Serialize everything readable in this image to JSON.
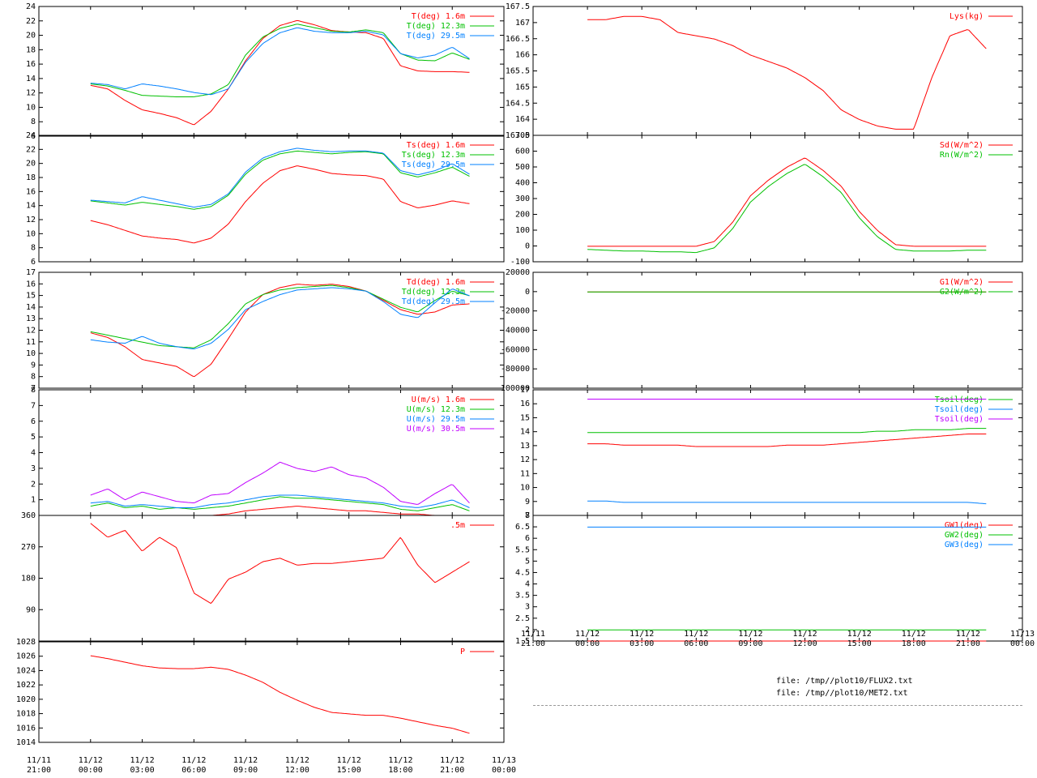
{
  "colors": {
    "red": "#ff0000",
    "green": "#00c000",
    "blue": "#0080ff",
    "purple": "#c000ff"
  },
  "x_time_ticks": [
    "11/11\n21:00",
    "11/12\n00:00",
    "11/12\n03:00",
    "11/12\n06:00",
    "11/12\n09:00",
    "11/12\n12:00",
    "11/12\n15:00",
    "11/12\n18:00",
    "11/12\n21:00",
    "11/13\n00:00"
  ],
  "files": [
    "file: /tmp//plot10/FLUX2.txt",
    "file: /tmp//plot10/MET2.txt"
  ],
  "chart_data": [
    {
      "id": "air-temperature",
      "type": "line",
      "ylim": [
        6,
        24
      ],
      "yticks": [
        "24",
        "22",
        "20",
        "18",
        "16",
        "14",
        "12",
        "10",
        "8",
        "6"
      ],
      "legend_placement": "top-right",
      "series": [
        {
          "name": "T(deg)  1.6m",
          "color": "red",
          "values": [
            13.1,
            12.6,
            11.0,
            9.7,
            9.2,
            8.6,
            7.6,
            9.5,
            12.6,
            16.5,
            19.6,
            21.4,
            22.1,
            21.5,
            20.7,
            20.5,
            20.4,
            19.6,
            15.8,
            15.1,
            15.0,
            15.0,
            14.9
          ]
        },
        {
          "name": "T(deg) 12.3m",
          "color": "green",
          "values": [
            13.3,
            13.0,
            12.4,
            11.7,
            11.6,
            11.5,
            11.5,
            11.9,
            13.2,
            17.3,
            19.8,
            21.0,
            21.6,
            21.1,
            20.6,
            20.5,
            20.8,
            20.4,
            17.5,
            16.6,
            16.5,
            17.6,
            16.7
          ]
        },
        {
          "name": "T(deg) 29.5m",
          "color": "blue",
          "values": [
            13.4,
            13.2,
            12.6,
            13.3,
            13.0,
            12.6,
            12.1,
            11.8,
            12.6,
            16.3,
            18.9,
            20.4,
            21.1,
            20.6,
            20.4,
            20.4,
            20.6,
            20.1,
            17.5,
            16.9,
            17.3,
            18.4,
            16.8
          ]
        }
      ]
    },
    {
      "id": "surface-temperature",
      "type": "line",
      "ylim": [
        6,
        24
      ],
      "yticks": [
        "24",
        "22",
        "20",
        "18",
        "16",
        "14",
        "12",
        "10",
        "8",
        "6"
      ],
      "legend_placement": "top-right",
      "series": [
        {
          "name": "Ts(deg)  1.6m",
          "color": "red",
          "values": [
            12.0,
            11.4,
            10.6,
            9.8,
            9.5,
            9.3,
            8.8,
            9.5,
            11.5,
            14.7,
            17.3,
            19.1,
            19.8,
            19.3,
            18.7,
            18.5,
            18.4,
            17.9,
            14.7,
            13.8,
            14.2,
            14.8,
            14.4
          ]
        },
        {
          "name": "Ts(deg) 12.3m",
          "color": "green",
          "values": [
            14.8,
            14.5,
            14.2,
            14.6,
            14.3,
            14.0,
            13.6,
            14.0,
            15.6,
            18.6,
            20.6,
            21.5,
            21.9,
            21.7,
            21.5,
            21.7,
            21.8,
            21.5,
            18.8,
            18.2,
            18.8,
            19.6,
            18.3
          ]
        },
        {
          "name": "Ts(deg) 29.5m",
          "color": "blue",
          "values": [
            14.9,
            14.7,
            14.5,
            15.4,
            14.9,
            14.4,
            13.9,
            14.3,
            15.8,
            18.9,
            20.9,
            21.8,
            22.3,
            22.0,
            21.8,
            21.9,
            21.9,
            21.6,
            19.1,
            18.5,
            19.1,
            20.1,
            18.6
          ]
        }
      ]
    },
    {
      "id": "dew-point",
      "type": "line",
      "ylim": [
        7,
        17
      ],
      "yticks": [
        "17",
        "16",
        "15",
        "14",
        "13",
        "12",
        "11",
        "10",
        "9",
        "8",
        "7"
      ],
      "legend_placement": "top-right",
      "series": [
        {
          "name": "Td(deg)  1.6m",
          "color": "red",
          "values": [
            11.8,
            11.4,
            10.6,
            9.5,
            9.2,
            8.9,
            8.0,
            9.1,
            11.3,
            13.6,
            15.1,
            15.7,
            16.0,
            15.9,
            16.0,
            15.8,
            15.4,
            14.6,
            13.8,
            13.4,
            13.6,
            14.2,
            14.3
          ]
        },
        {
          "name": "Td(deg) 12.3m",
          "color": "green",
          "values": [
            11.9,
            11.6,
            11.3,
            11.0,
            10.7,
            10.6,
            10.5,
            11.2,
            12.6,
            14.3,
            15.1,
            15.5,
            15.7,
            15.8,
            15.9,
            15.7,
            15.4,
            14.7,
            14.0,
            13.6,
            14.6,
            15.4,
            15.0
          ]
        },
        {
          "name": "Td(deg) 29.5m",
          "color": "blue",
          "values": [
            11.2,
            11.0,
            10.9,
            11.5,
            10.9,
            10.6,
            10.4,
            10.9,
            12.1,
            13.8,
            14.5,
            15.1,
            15.5,
            15.6,
            15.7,
            15.6,
            15.4,
            14.5,
            13.4,
            13.1,
            14.4,
            15.6,
            15.0
          ]
        }
      ]
    },
    {
      "id": "wind-speed",
      "type": "line",
      "ylim": [
        0,
        8
      ],
      "yticks": [
        "8",
        "7",
        "6",
        "5",
        "4",
        "3",
        "2",
        "1"
      ],
      "legend_placement": "top-right",
      "series": [
        {
          "name": "U(m/s)  1.6m",
          "color": "red",
          "values": [
            0.2,
            0.2,
            0.2,
            0.2,
            0.2,
            0.2,
            0.2,
            0.2,
            0.3,
            0.5,
            0.6,
            0.7,
            0.8,
            0.7,
            0.6,
            0.5,
            0.5,
            0.4,
            0.3,
            0.3,
            0.2,
            0.2,
            0.2
          ]
        },
        {
          "name": "U(m/s) 12.3m",
          "color": "green",
          "values": [
            0.8,
            1.0,
            0.7,
            0.8,
            0.6,
            0.7,
            0.6,
            0.7,
            0.8,
            1.0,
            1.2,
            1.4,
            1.3,
            1.3,
            1.2,
            1.1,
            1.0,
            0.9,
            0.6,
            0.5,
            0.7,
            0.9,
            0.5
          ]
        },
        {
          "name": "U(m/s) 29.5m",
          "color": "blue",
          "values": [
            1.0,
            1.1,
            0.8,
            0.9,
            0.8,
            0.7,
            0.7,
            0.9,
            1.0,
            1.2,
            1.4,
            1.5,
            1.5,
            1.4,
            1.3,
            1.2,
            1.1,
            1.0,
            0.8,
            0.7,
            0.9,
            1.2,
            0.7
          ]
        },
        {
          "name": "U(m/s) 30.5m",
          "color": "purple",
          "values": [
            1.5,
            1.9,
            1.2,
            1.7,
            1.4,
            1.1,
            1.0,
            1.5,
            1.6,
            2.3,
            2.9,
            3.6,
            3.2,
            3.0,
            3.3,
            2.8,
            2.6,
            2.0,
            1.1,
            0.9,
            1.6,
            2.2,
            1.0
          ]
        }
      ]
    },
    {
      "id": "wind-direction",
      "type": "line",
      "ylim": [
        0,
        360
      ],
      "yticks": [
        "360",
        "270",
        "180",
        "90"
      ],
      "legend_placement": "top-right",
      "series": [
        {
          "name": ".5m",
          "color": "red",
          "values": [
            340,
            300,
            320,
            260,
            300,
            270,
            140,
            110,
            180,
            200,
            230,
            240,
            220,
            225,
            225,
            230,
            235,
            240,
            300,
            220,
            170,
            200,
            230
          ]
        }
      ]
    },
    {
      "id": "pressure",
      "type": "line",
      "ylim": [
        1014,
        1028
      ],
      "yticks": [
        "1028",
        "1026",
        "1024",
        "1022",
        "1020",
        "1018",
        "1016",
        "1014"
      ],
      "legend_placement": "top-right",
      "series": [
        {
          "name": "P",
          "color": "red",
          "values": [
            1026.1,
            1025.7,
            1025.2,
            1024.7,
            1024.4,
            1024.3,
            1024.3,
            1024.5,
            1024.2,
            1023.4,
            1022.4,
            1021.0,
            1019.9,
            1018.9,
            1018.2,
            1018.0,
            1017.8,
            1017.8,
            1017.4,
            1016.9,
            1016.4,
            1016.0,
            1015.3
          ]
        }
      ]
    },
    {
      "id": "lysimeter",
      "type": "line",
      "ylim": [
        163.5,
        167.5
      ],
      "yticks": [
        "167.5",
        "167",
        "166.5",
        "166",
        "165.5",
        "165",
        "164.5",
        "164",
        "163.5"
      ],
      "legend_placement": "top-right",
      "series": [
        {
          "name": "Lys(kg)",
          "color": "red",
          "values": [
            167.1,
            167.1,
            167.2,
            167.2,
            167.1,
            166.7,
            166.6,
            166.5,
            166.3,
            166.0,
            165.8,
            165.6,
            165.3,
            164.9,
            164.3,
            164.0,
            163.8,
            163.7,
            163.7,
            165.3,
            166.6,
            166.8,
            166.2
          ]
        }
      ]
    },
    {
      "id": "radiation",
      "type": "line",
      "ylim": [
        -100,
        700
      ],
      "yticks": [
        "700",
        "600",
        "500",
        "400",
        "300",
        "200",
        "100",
        "0",
        "-100"
      ],
      "legend_placement": "top-right",
      "series": [
        {
          "name": "Sd(W/m^2)",
          "color": "red",
          "values": [
            0,
            0,
            0,
            0,
            0,
            0,
            0,
            30,
            150,
            320,
            420,
            500,
            560,
            480,
            380,
            220,
            100,
            10,
            0,
            0,
            0,
            0,
            0
          ]
        },
        {
          "name": "Rn(W/m^2)",
          "color": "green",
          "values": [
            -20,
            -25,
            -30,
            -30,
            -35,
            -35,
            -40,
            -10,
            110,
            280,
            380,
            460,
            520,
            440,
            340,
            180,
            60,
            -20,
            -30,
            -30,
            -30,
            -25,
            -25
          ]
        }
      ]
    },
    {
      "id": "ground-heat-flux",
      "type": "line",
      "ylim": [
        -100000,
        20000
      ],
      "yticks": [
        "20000",
        "0",
        "-20000",
        "-40000",
        "-60000",
        "-80000",
        "-100000"
      ],
      "legend_placement": "top-right",
      "series": [
        {
          "name": "G1(W/m^2)",
          "color": "red",
          "values": [
            0,
            0,
            0,
            0,
            0,
            0,
            0,
            0,
            0,
            0,
            0,
            0,
            0,
            0,
            0,
            0,
            0,
            0,
            0,
            0,
            0,
            0,
            0
          ]
        },
        {
          "name": "G2(W/m^2)",
          "color": "green",
          "values": [
            0,
            0,
            0,
            0,
            0,
            0,
            0,
            0,
            0,
            0,
            0,
            0,
            0,
            0,
            0,
            0,
            0,
            0,
            0,
            0,
            0,
            0,
            0
          ]
        }
      ]
    },
    {
      "id": "soil-temperature",
      "type": "line",
      "ylim": [
        8,
        17
      ],
      "yticks": [
        "17",
        "16",
        "15",
        "14",
        "13",
        "12",
        "11",
        "10",
        "9",
        "8"
      ],
      "legend_placement": "top-right",
      "series": [
        {
          "name": "Tsoil(deg)",
          "color": "green",
          "values": [
            14.0,
            14.0,
            14.0,
            14.0,
            14.0,
            14.0,
            14.0,
            14.0,
            14.0,
            14.0,
            14.0,
            14.0,
            14.0,
            14.0,
            14.0,
            14.0,
            14.1,
            14.1,
            14.2,
            14.2,
            14.2,
            14.3,
            14.3
          ]
        },
        {
          "name": "Tsoil(deg)",
          "color": "blue",
          "values": [
            9.1,
            9.1,
            9.0,
            9.0,
            9.0,
            9.0,
            9.0,
            9.0,
            9.0,
            9.0,
            9.0,
            9.0,
            9.0,
            9.0,
            9.0,
            9.0,
            9.0,
            9.0,
            9.0,
            9.0,
            9.0,
            9.0,
            8.9
          ]
        },
        {
          "name": "Tsoil(deg)",
          "color": "purple",
          "values": [
            16.4,
            16.4,
            16.4,
            16.4,
            16.4,
            16.4,
            16.4,
            16.4,
            16.4,
            16.4,
            16.4,
            16.4,
            16.4,
            16.4,
            16.4,
            16.4,
            16.4,
            16.4,
            16.4,
            16.4,
            16.4,
            16.4,
            16.4
          ]
        },
        {
          "name": "",
          "color": "red",
          "values": [
            13.2,
            13.2,
            13.1,
            13.1,
            13.1,
            13.1,
            13.0,
            13.0,
            13.0,
            13.0,
            13.0,
            13.1,
            13.1,
            13.1,
            13.2,
            13.3,
            13.4,
            13.5,
            13.6,
            13.7,
            13.8,
            13.9,
            13.9
          ]
        }
      ]
    },
    {
      "id": "groundwater",
      "type": "line",
      "ylim": [
        1.5,
        7
      ],
      "yticks": [
        "7",
        "6.5",
        "6",
        "5.5",
        "5",
        "4.5",
        "4",
        "3.5",
        "3",
        "2.5",
        "2",
        "1.5"
      ],
      "legend_placement": "top-right",
      "series": [
        {
          "name": "GW1(deg)",
          "color": "red",
          "values": [
            1.5,
            1.5,
            1.5,
            1.5,
            1.5,
            1.5,
            1.5,
            1.5,
            1.5,
            1.5,
            1.5,
            1.5,
            1.5,
            1.5,
            1.5,
            1.5,
            1.5,
            1.5,
            1.5,
            1.5,
            1.5,
            1.5,
            1.5
          ]
        },
        {
          "name": "GW2(deg)",
          "color": "green",
          "values": [
            2.0,
            2.0,
            2.0,
            2.0,
            2.0,
            2.0,
            2.0,
            2.0,
            2.0,
            2.0,
            2.0,
            2.0,
            2.0,
            2.0,
            2.0,
            2.0,
            2.0,
            2.0,
            2.0,
            2.0,
            2.0,
            2.0,
            2.0
          ]
        },
        {
          "name": "GW3(deg)",
          "color": "blue",
          "values": [
            6.5,
            6.5,
            6.5,
            6.5,
            6.5,
            6.5,
            6.5,
            6.5,
            6.5,
            6.5,
            6.5,
            6.5,
            6.5,
            6.5,
            6.5,
            6.5,
            6.5,
            6.5,
            6.5,
            6.5,
            6.5,
            6.5,
            6.5
          ]
        }
      ]
    }
  ]
}
